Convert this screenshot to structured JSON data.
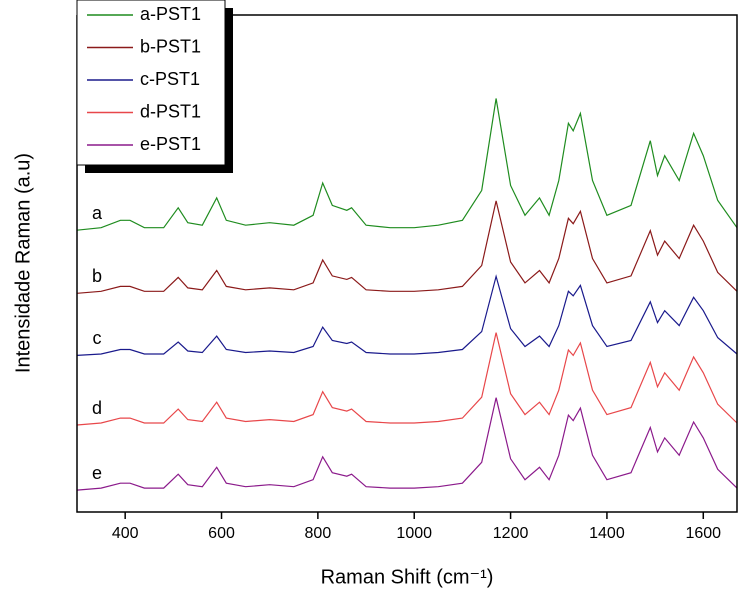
{
  "chart_data": {
    "type": "line",
    "xlabel": "Raman Shift (cm⁻¹)",
    "ylabel": "Intensidade Raman (a.u)",
    "x": [
      300,
      350,
      390,
      410,
      440,
      480,
      510,
      530,
      560,
      590,
      610,
      650,
      700,
      750,
      790,
      810,
      830,
      860,
      870,
      900,
      950,
      1000,
      1050,
      1100,
      1140,
      1170,
      1200,
      1230,
      1260,
      1280,
      1300,
      1320,
      1330,
      1345,
      1370,
      1400,
      1450,
      1490,
      1505,
      1520,
      1550,
      1580,
      1600,
      1630,
      1670
    ],
    "series": [
      {
        "name": "a-PST1",
        "color": "#1f8c1f",
        "values": [
          56.7,
          57.2,
          58.7,
          58.7,
          57.2,
          57.2,
          61.2,
          58.2,
          57.7,
          63.2,
          58.7,
          57.7,
          58.2,
          57.7,
          59.7,
          66.2,
          61.7,
          60.7,
          61.2,
          57.7,
          57.2,
          57.2,
          57.7,
          58.7,
          64.7,
          83.2,
          65.7,
          59.7,
          63.2,
          59.7,
          66.7,
          78.2,
          76.7,
          80.2,
          66.7,
          59.7,
          61.7,
          74.7,
          67.7,
          71.7,
          66.7,
          76.2,
          71.7,
          62.7,
          57.2
        ]
      },
      {
        "name": "b-PST1",
        "color": "#8b1a1a",
        "values": [
          44,
          44.4,
          45.4,
          45.4,
          44.4,
          44.4,
          47.2,
          45.1,
          44.7,
          48.6,
          45.4,
          44.7,
          45.1,
          44.7,
          46.1,
          50.7,
          47.5,
          46.8,
          47.2,
          44.7,
          44.4,
          44.4,
          44.7,
          45.4,
          49.6,
          62.6,
          50.3,
          46.1,
          48.6,
          46.1,
          51,
          59.1,
          58,
          60.5,
          51,
          46.1,
          47.5,
          56.6,
          51.7,
          54.5,
          51,
          57.7,
          54.5,
          48.2,
          44.4
        ]
      },
      {
        "name": "c-PST1",
        "color": "#1a1a8c",
        "values": [
          31.5,
          31.8,
          32.7,
          32.7,
          31.8,
          31.8,
          34.2,
          32.4,
          32.1,
          35.4,
          32.7,
          32.1,
          32.4,
          32.1,
          33.3,
          37.2,
          34.5,
          33.9,
          34.2,
          32.1,
          31.8,
          31.8,
          32.1,
          32.7,
          36.3,
          47.4,
          36.9,
          33.3,
          35.4,
          33.3,
          37.5,
          44.4,
          43.5,
          45.6,
          37.5,
          33.3,
          34.5,
          42.3,
          38.1,
          40.5,
          37.5,
          43.2,
          40.5,
          35.1,
          31.8
        ]
      },
      {
        "name": "d-PST1",
        "color": "#e8474a",
        "values": [
          17.5,
          17.9,
          18.9,
          18.9,
          17.9,
          17.9,
          20.7,
          18.6,
          18.2,
          22.1,
          18.9,
          18.2,
          18.6,
          18.2,
          19.6,
          24.2,
          21,
          20.3,
          20.7,
          18.2,
          17.9,
          17.9,
          18.2,
          18.9,
          23.1,
          36.1,
          23.8,
          19.6,
          22.1,
          19.6,
          24.5,
          32.6,
          31.5,
          34,
          24.5,
          19.6,
          21,
          30.1,
          25.2,
          28,
          24.5,
          31.2,
          28,
          21.7,
          17.9
        ]
      },
      {
        "name": "e-PST1",
        "color": "#8b1a8b",
        "values": [
          4.4,
          4.8,
          5.8,
          5.8,
          4.8,
          4.8,
          7.6,
          5.5,
          5.1,
          9,
          5.8,
          5.1,
          5.5,
          5.1,
          6.5,
          11.1,
          7.9,
          7.2,
          7.6,
          5.1,
          4.8,
          4.8,
          5.1,
          5.8,
          10,
          23,
          10.7,
          6.5,
          9,
          6.5,
          11.4,
          19.5,
          18.4,
          20.9,
          11.4,
          6.5,
          7.9,
          17,
          12.1,
          14.9,
          11.4,
          18.1,
          14.9,
          8.6,
          4.8
        ]
      }
    ],
    "annotations": [
      "a",
      "b",
      "c",
      "d",
      "e"
    ],
    "xlim": [
      300,
      1670
    ],
    "xticks": [
      400,
      600,
      800,
      1000,
      1200,
      1400,
      1600
    ],
    "ylim": [
      0,
      100
    ],
    "legend": "upper left"
  }
}
